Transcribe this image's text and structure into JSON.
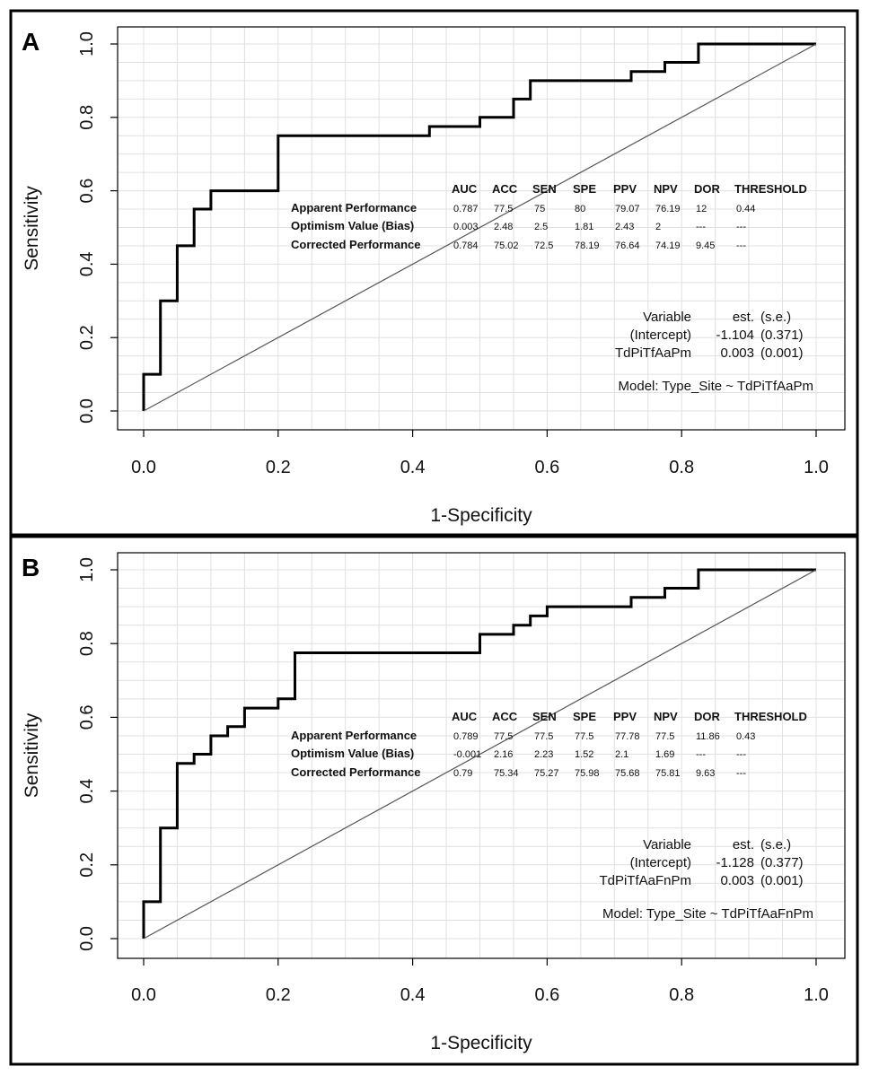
{
  "chart_data": [
    {
      "type": "line",
      "panel_label": "A",
      "xlabel": "1-Specificity",
      "ylabel": "Sensitivity",
      "xlim": [
        0,
        1
      ],
      "ylim": [
        0,
        1
      ],
      "xticks": [
        "0.0",
        "0.2",
        "0.4",
        "0.6",
        "0.8",
        "1.0"
      ],
      "yticks": [
        "0.0",
        "0.2",
        "0.4",
        "0.6",
        "0.8",
        "1.0"
      ],
      "grid": true,
      "series": [
        {
          "name": "ROC",
          "x": [
            0,
            0,
            0.025,
            0.025,
            0.05,
            0.05,
            0.075,
            0.075,
            0.1,
            0.1,
            0.2,
            0.2,
            0.425,
            0.425,
            0.5,
            0.5,
            0.55,
            0.55,
            0.575,
            0.575,
            0.725,
            0.725,
            0.775,
            0.775,
            0.825,
            0.825,
            1.0
          ],
          "y": [
            0,
            0.1,
            0.1,
            0.3,
            0.3,
            0.45,
            0.45,
            0.55,
            0.55,
            0.6,
            0.6,
            0.75,
            0.75,
            0.775,
            0.775,
            0.8,
            0.8,
            0.85,
            0.85,
            0.9,
            0.9,
            0.925,
            0.925,
            0.95,
            0.95,
            1.0,
            1.0
          ]
        },
        {
          "name": "reference",
          "x": [
            0,
            1
          ],
          "y": [
            0,
            1
          ]
        }
      ],
      "performance_table": {
        "columns": [
          "AUC",
          "ACC",
          "SEN",
          "SPE",
          "PPV",
          "NPV",
          "DOR",
          "THRESHOLD"
        ],
        "rows": [
          {
            "label": "Apparent Performance",
            "values": [
              "0.787",
              "77.5",
              "75",
              "80",
              "79.07",
              "76.19",
              "12",
              "0.44"
            ]
          },
          {
            "label": "Optimism Value (Bias)",
            "values": [
              "0.003",
              "2.48",
              "2.5",
              "1.81",
              "2.43",
              "2",
              "---",
              "---"
            ]
          },
          {
            "label": "Corrected Performance",
            "values": [
              "0.784",
              "75.02",
              "72.5",
              "78.19",
              "76.64",
              "74.19",
              "9.45",
              "---"
            ]
          }
        ]
      },
      "coef_table": {
        "header": [
          "Variable",
          "est.",
          "(s.e.)"
        ],
        "rows": [
          [
            "(Intercept)",
            "-1.104",
            "(0.371)"
          ],
          [
            "TdPiTfAaPm",
            "0.003",
            "(0.001)"
          ]
        ]
      },
      "model": "Model:  Type_Site ~ TdPiTfAaPm"
    },
    {
      "type": "line",
      "panel_label": "B",
      "xlabel": "1-Specificity",
      "ylabel": "Sensitivity",
      "xlim": [
        0,
        1
      ],
      "ylim": [
        0,
        1
      ],
      "xticks": [
        "0.0",
        "0.2",
        "0.4",
        "0.6",
        "0.8",
        "1.0"
      ],
      "yticks": [
        "0.0",
        "0.2",
        "0.4",
        "0.6",
        "0.8",
        "1.0"
      ],
      "grid": true,
      "series": [
        {
          "name": "ROC",
          "x": [
            0,
            0,
            0.025,
            0.025,
            0.05,
            0.05,
            0.075,
            0.075,
            0.1,
            0.1,
            0.125,
            0.125,
            0.15,
            0.15,
            0.2,
            0.2,
            0.225,
            0.225,
            0.5,
            0.5,
            0.55,
            0.55,
            0.575,
            0.575,
            0.6,
            0.6,
            0.725,
            0.725,
            0.775,
            0.775,
            0.825,
            0.825,
            1.0
          ],
          "y": [
            0,
            0.1,
            0.1,
            0.3,
            0.3,
            0.475,
            0.475,
            0.5,
            0.5,
            0.55,
            0.55,
            0.575,
            0.575,
            0.625,
            0.625,
            0.65,
            0.65,
            0.775,
            0.775,
            0.825,
            0.825,
            0.85,
            0.85,
            0.875,
            0.875,
            0.9,
            0.9,
            0.925,
            0.925,
            0.95,
            0.95,
            1.0,
            1.0
          ]
        },
        {
          "name": "reference",
          "x": [
            0,
            1
          ],
          "y": [
            0,
            1
          ]
        }
      ],
      "performance_table": {
        "columns": [
          "AUC",
          "ACC",
          "SEN",
          "SPE",
          "PPV",
          "NPV",
          "DOR",
          "THRESHOLD"
        ],
        "rows": [
          {
            "label": "Apparent Performance",
            "values": [
              "0.789",
              "77.5",
              "77.5",
              "77.5",
              "77.78",
              "77.5",
              "11.86",
              "0.43"
            ]
          },
          {
            "label": "Optimism Value (Bias)",
            "values": [
              "-0.001",
              "2.16",
              "2.23",
              "1.52",
              "2.1",
              "1.69",
              "---",
              "---"
            ]
          },
          {
            "label": "Corrected Performance",
            "values": [
              "0.79",
              "75.34",
              "75.27",
              "75.98",
              "75.68",
              "75.81",
              "9.63",
              "---"
            ]
          }
        ]
      },
      "coef_table": {
        "header": [
          "Variable",
          "est.",
          "(s.e.)"
        ],
        "rows": [
          [
            "(Intercept)",
            "-1.128",
            "(0.377)"
          ],
          [
            "TdPiTfAaFnPm",
            "0.003",
            "(0.001)"
          ]
        ]
      },
      "model": "Model:  Type_Site ~ TdPiTfAaFnPm"
    }
  ]
}
